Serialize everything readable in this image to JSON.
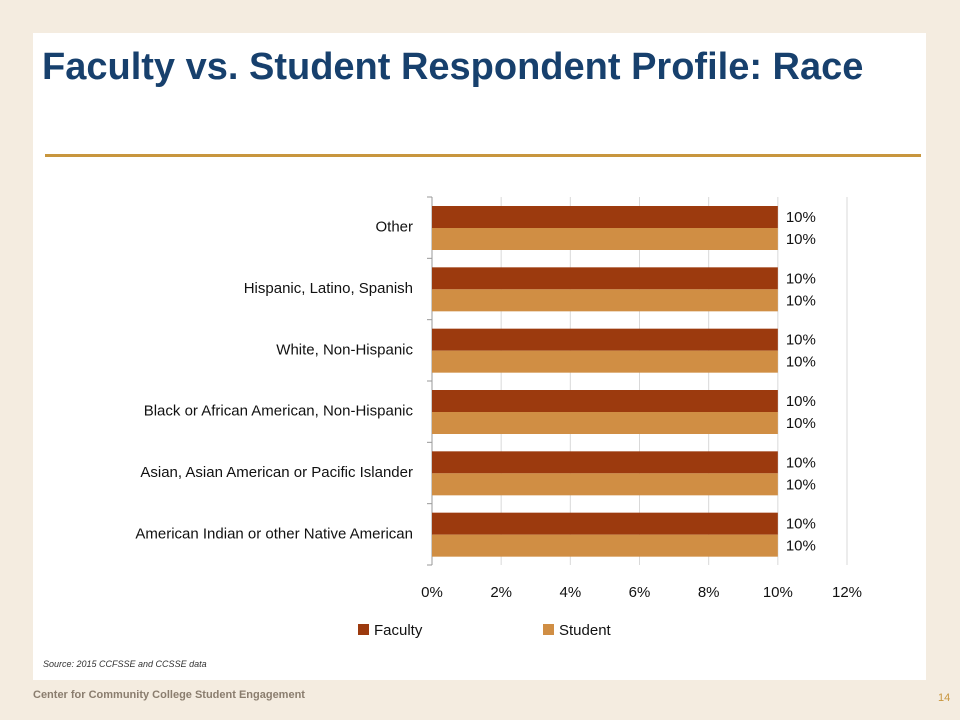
{
  "slide": {
    "footer": "Center for Community College Student Engagement",
    "page_number": "14"
  },
  "chart_data": {
    "type": "hbar",
    "title": "Faculty vs. Student Respondent Profile: Race",
    "source": "Source: 2015 CCFSSE and CCSSE data",
    "categories": [
      "Other",
      "Hispanic, Latino, Spanish",
      "White, Non-Hispanic",
      "Black or African American, Non-Hispanic",
      "Asian, Asian American or Pacific Islander",
      "American Indian or other Native American"
    ],
    "series": [
      {
        "name": "Faculty",
        "color": "#9c3a0e",
        "values": [
          10,
          10,
          10,
          10,
          10,
          10
        ],
        "value_labels": [
          "10%",
          "10%",
          "10%",
          "10%",
          "10%",
          "10%"
        ]
      },
      {
        "name": "Student",
        "color": "#d08e44",
        "values": [
          10,
          10,
          10,
          10,
          10,
          10
        ],
        "value_labels": [
          "10%",
          "10%",
          "10%",
          "10%",
          "10%",
          "10%"
        ]
      }
    ],
    "xlim": [
      0,
      12
    ],
    "xticks": [
      {
        "value": 0,
        "label": "0%"
      },
      {
        "value": 2,
        "label": "2%"
      },
      {
        "value": 4,
        "label": "4%"
      },
      {
        "value": 6,
        "label": "6%"
      },
      {
        "value": 8,
        "label": "8%"
      },
      {
        "value": 10,
        "label": "10%"
      },
      {
        "value": 12,
        "label": "12%"
      }
    ],
    "grid": true,
    "legend": "bottom"
  }
}
